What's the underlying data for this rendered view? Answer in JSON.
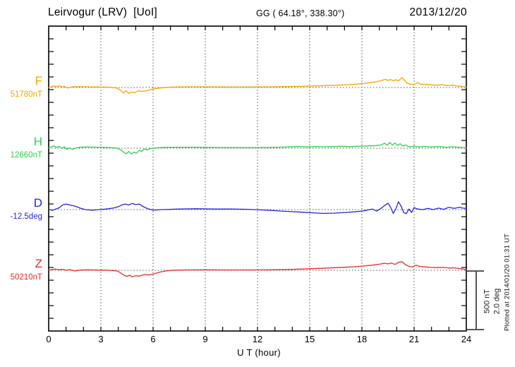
{
  "header": {
    "station": "Leirvogur (LRV)  [UoI]",
    "coordinates": "GG ( 64.18°, 338.30°)",
    "date": "2013/12/20"
  },
  "channels": [
    {
      "label": "F",
      "value": "51780nT",
      "color": "#F0A600"
    },
    {
      "label": "H",
      "value": "12660nT",
      "color": "#2FD14C"
    },
    {
      "label": "D",
      "value": "-12.5deg",
      "color": "#2525DB"
    },
    {
      "label": "Z",
      "value": "50210nT",
      "color": "#E82A25"
    }
  ],
  "x_axis": {
    "title": "U T (hour)"
  },
  "scale_bar": {
    "line1": "500 nT",
    "line2": "2.0 deg"
  },
  "footer": {
    "plotted_at": "Plotted at 2014/01/20 01:31 UT"
  },
  "chart_data": {
    "type": "line",
    "title": "Leirvogur (LRV) [UoI] magnetogram 2013/12/20",
    "xlabel": "U T (hour)",
    "x_range": [
      0,
      24
    ],
    "x_major_ticks": [
      0,
      3,
      6,
      9,
      12,
      15,
      18,
      21,
      24
    ],
    "grid": "dotted vertical at 3-hour intervals, dotted horizontal baselines",
    "scale_bar": {
      "nT_per_bar": 500,
      "deg_per_bar": 2.0
    },
    "series": [
      {
        "name": "F",
        "unit": "nT",
        "baseline_value": 51780,
        "color": "#F0A600",
        "points": [
          [
            0,
            2
          ],
          [
            0.15,
            8
          ],
          [
            0.3,
            14
          ],
          [
            0.45,
            6
          ],
          [
            0.6,
            15
          ],
          [
            0.75,
            4
          ],
          [
            0.9,
            10
          ],
          [
            1.1,
            -5
          ],
          [
            1.3,
            5
          ],
          [
            1.6,
            7
          ],
          [
            2,
            6
          ],
          [
            2.5,
            5
          ],
          [
            3,
            4
          ],
          [
            3.5,
            2
          ],
          [
            3.9,
            -4
          ],
          [
            4.1,
            -20
          ],
          [
            4.3,
            -46
          ],
          [
            4.45,
            -28
          ],
          [
            4.6,
            -50
          ],
          [
            4.75,
            -38
          ],
          [
            4.95,
            -45
          ],
          [
            5.15,
            -27
          ],
          [
            5.4,
            -33
          ],
          [
            5.7,
            -24
          ],
          [
            6,
            -12
          ],
          [
            6.4,
            -4
          ],
          [
            6.8,
            2
          ],
          [
            7.5,
            5
          ],
          [
            8.5,
            6
          ],
          [
            9.5,
            5
          ],
          [
            10.5,
            4
          ],
          [
            11.5,
            4
          ],
          [
            12.5,
            5
          ],
          [
            13.5,
            7
          ],
          [
            14.5,
            10
          ],
          [
            15.5,
            14
          ],
          [
            16.5,
            19
          ],
          [
            17.2,
            24
          ],
          [
            17.8,
            30
          ],
          [
            18.3,
            38
          ],
          [
            18.8,
            48
          ],
          [
            19.1,
            58
          ],
          [
            19.35,
            70
          ],
          [
            19.5,
            60
          ],
          [
            19.65,
            68
          ],
          [
            19.8,
            58
          ],
          [
            19.95,
            66
          ],
          [
            20.1,
            58
          ],
          [
            20.3,
            84
          ],
          [
            20.45,
            62
          ],
          [
            20.6,
            38
          ],
          [
            20.8,
            28
          ],
          [
            21,
            24
          ],
          [
            21.2,
            42
          ],
          [
            21.4,
            28
          ],
          [
            21.7,
            25
          ],
          [
            22,
            22
          ],
          [
            22.3,
            20
          ],
          [
            22.6,
            24
          ],
          [
            22.9,
            17
          ],
          [
            23.2,
            20
          ],
          [
            23.5,
            12
          ],
          [
            23.8,
            8
          ],
          [
            24,
            2
          ]
        ]
      },
      {
        "name": "H",
        "unit": "nT",
        "baseline_value": 12660,
        "color": "#2FD14C",
        "points": [
          [
            0,
            2
          ],
          [
            0.15,
            10
          ],
          [
            0.3,
            20
          ],
          [
            0.45,
            5
          ],
          [
            0.6,
            16
          ],
          [
            0.75,
            -2
          ],
          [
            0.9,
            12
          ],
          [
            1.05,
            -10
          ],
          [
            1.2,
            3
          ],
          [
            1.35,
            -11
          ],
          [
            1.55,
            1
          ],
          [
            1.8,
            8
          ],
          [
            2.2,
            10
          ],
          [
            2.6,
            9
          ],
          [
            3,
            8
          ],
          [
            3.5,
            6
          ],
          [
            3.9,
            1
          ],
          [
            4.1,
            -10
          ],
          [
            4.3,
            -32
          ],
          [
            4.45,
            -48
          ],
          [
            4.6,
            -28
          ],
          [
            4.75,
            -50
          ],
          [
            4.9,
            -34
          ],
          [
            5.05,
            -43
          ],
          [
            5.2,
            -18
          ],
          [
            5.35,
            -27
          ],
          [
            5.5,
            -5
          ],
          [
            5.65,
            -15
          ],
          [
            5.85,
            -2
          ],
          [
            6.2,
            3
          ],
          [
            6.6,
            7
          ],
          [
            7.2,
            8
          ],
          [
            8,
            8
          ],
          [
            9,
            7
          ],
          [
            10,
            6
          ],
          [
            11,
            5
          ],
          [
            12,
            5
          ],
          [
            13,
            7
          ],
          [
            13.8,
            11
          ],
          [
            14.3,
            14
          ],
          [
            14.8,
            11
          ],
          [
            15.3,
            14
          ],
          [
            15.8,
            12
          ],
          [
            16.3,
            14
          ],
          [
            16.8,
            16
          ],
          [
            17.3,
            13
          ],
          [
            17.8,
            17
          ],
          [
            18.3,
            19
          ],
          [
            18.8,
            22
          ],
          [
            19.1,
            28
          ],
          [
            19.3,
            42
          ],
          [
            19.45,
            26
          ],
          [
            19.6,
            48
          ],
          [
            19.75,
            28
          ],
          [
            19.9,
            44
          ],
          [
            20.05,
            24
          ],
          [
            20.2,
            38
          ],
          [
            20.35,
            18
          ],
          [
            20.5,
            28
          ],
          [
            20.7,
            12
          ],
          [
            21,
            17
          ],
          [
            21.3,
            10
          ],
          [
            21.6,
            15
          ],
          [
            22,
            10
          ],
          [
            22.4,
            14
          ],
          [
            22.8,
            8
          ],
          [
            23.2,
            12
          ],
          [
            23.6,
            7
          ],
          [
            24,
            3
          ]
        ]
      },
      {
        "name": "D",
        "unit": "deg",
        "baseline_value": -12.5,
        "color": "#2525DB",
        "points": [
          [
            0,
            0.02
          ],
          [
            0.2,
            -0.03
          ],
          [
            0.4,
            0.02
          ],
          [
            0.6,
            0.06
          ],
          [
            0.8,
            0.16
          ],
          [
            1,
            0.19
          ],
          [
            1.2,
            0.16
          ],
          [
            1.5,
            0.12
          ],
          [
            1.8,
            0.05
          ],
          [
            2.1,
            0
          ],
          [
            2.5,
            -0.02
          ],
          [
            2.9,
            0
          ],
          [
            3.3,
            0.02
          ],
          [
            3.7,
            0.05
          ],
          [
            4,
            0.1
          ],
          [
            4.2,
            0.16
          ],
          [
            4.4,
            0.19
          ],
          [
            4.6,
            0.16
          ],
          [
            4.8,
            0.21
          ],
          [
            5,
            0.17
          ],
          [
            5.2,
            0.19
          ],
          [
            5.45,
            0.1
          ],
          [
            5.7,
            0.03
          ],
          [
            6,
            -0.02
          ],
          [
            6.5,
            0
          ],
          [
            7.5,
            0.02
          ],
          [
            8.5,
            0.03
          ],
          [
            9.5,
            0.02
          ],
          [
            10.5,
            0.02
          ],
          [
            11.5,
            0.01
          ],
          [
            12.2,
            -0.01
          ],
          [
            12.8,
            -0.03
          ],
          [
            13.4,
            -0.05
          ],
          [
            14,
            -0.07
          ],
          [
            14.6,
            -0.09
          ],
          [
            15.2,
            -0.11
          ],
          [
            15.8,
            -0.13
          ],
          [
            16.4,
            -0.12
          ],
          [
            17,
            -0.1
          ],
          [
            17.5,
            -0.08
          ],
          [
            18,
            -0.05
          ],
          [
            18.3,
            -0.02
          ],
          [
            18.6,
            0.02
          ],
          [
            18.85,
            -0.05
          ],
          [
            19.1,
            0.04
          ],
          [
            19.3,
            0.14
          ],
          [
            19.5,
            0.22
          ],
          [
            19.65,
            0.08
          ],
          [
            19.8,
            -0.13
          ],
          [
            19.95,
            0.03
          ],
          [
            20.1,
            0.27
          ],
          [
            20.25,
            0.12
          ],
          [
            20.4,
            -0.1
          ],
          [
            20.55,
            -0.14
          ],
          [
            20.7,
            0.02
          ],
          [
            20.85,
            -0.1
          ],
          [
            21,
            0.07
          ],
          [
            21.2,
            0.02
          ],
          [
            21.5,
            0
          ],
          [
            21.8,
            0.04
          ],
          [
            22.1,
            0
          ],
          [
            22.4,
            0.05
          ],
          [
            22.7,
            0.01
          ],
          [
            23,
            0.08
          ],
          [
            23.3,
            0.04
          ],
          [
            23.6,
            0.08
          ],
          [
            23.8,
            0.05
          ],
          [
            24,
            0.04
          ]
        ]
      },
      {
        "name": "Z",
        "unit": "nT",
        "baseline_value": 50210,
        "color": "#E82A25",
        "points": [
          [
            0,
            1
          ],
          [
            0.2,
            6
          ],
          [
            0.4,
            11
          ],
          [
            0.6,
            4
          ],
          [
            0.8,
            9
          ],
          [
            1,
            0
          ],
          [
            1.2,
            6
          ],
          [
            1.5,
            -6
          ],
          [
            1.8,
            2
          ],
          [
            2.2,
            4
          ],
          [
            2.8,
            2
          ],
          [
            3.4,
            1
          ],
          [
            3.9,
            -4
          ],
          [
            4.1,
            -18
          ],
          [
            4.3,
            -40
          ],
          [
            4.5,
            -52
          ],
          [
            4.65,
            -42
          ],
          [
            4.8,
            -55
          ],
          [
            5,
            -46
          ],
          [
            5.2,
            -50
          ],
          [
            5.5,
            -36
          ],
          [
            5.8,
            -40
          ],
          [
            6.1,
            -28
          ],
          [
            6.4,
            -15
          ],
          [
            6.7,
            -6
          ],
          [
            7.2,
            1
          ],
          [
            8,
            3
          ],
          [
            9,
            4
          ],
          [
            10,
            3
          ],
          [
            11,
            3
          ],
          [
            12,
            3
          ],
          [
            13,
            5
          ],
          [
            14,
            8
          ],
          [
            15,
            13
          ],
          [
            16,
            19
          ],
          [
            17,
            26
          ],
          [
            17.6,
            31
          ],
          [
            18.1,
            37
          ],
          [
            18.6,
            44
          ],
          [
            19,
            52
          ],
          [
            19.3,
            60
          ],
          [
            19.5,
            55
          ],
          [
            19.7,
            62
          ],
          [
            19.9,
            50
          ],
          [
            20.1,
            68
          ],
          [
            20.3,
            74
          ],
          [
            20.5,
            48
          ],
          [
            20.7,
            35
          ],
          [
            20.9,
            29
          ],
          [
            21.1,
            44
          ],
          [
            21.3,
            34
          ],
          [
            21.6,
            29
          ],
          [
            22,
            25
          ],
          [
            22.3,
            23
          ],
          [
            22.7,
            25
          ],
          [
            23,
            19
          ],
          [
            23.3,
            21
          ],
          [
            23.6,
            15
          ],
          [
            23.8,
            11
          ],
          [
            24,
            3
          ]
        ]
      }
    ]
  }
}
